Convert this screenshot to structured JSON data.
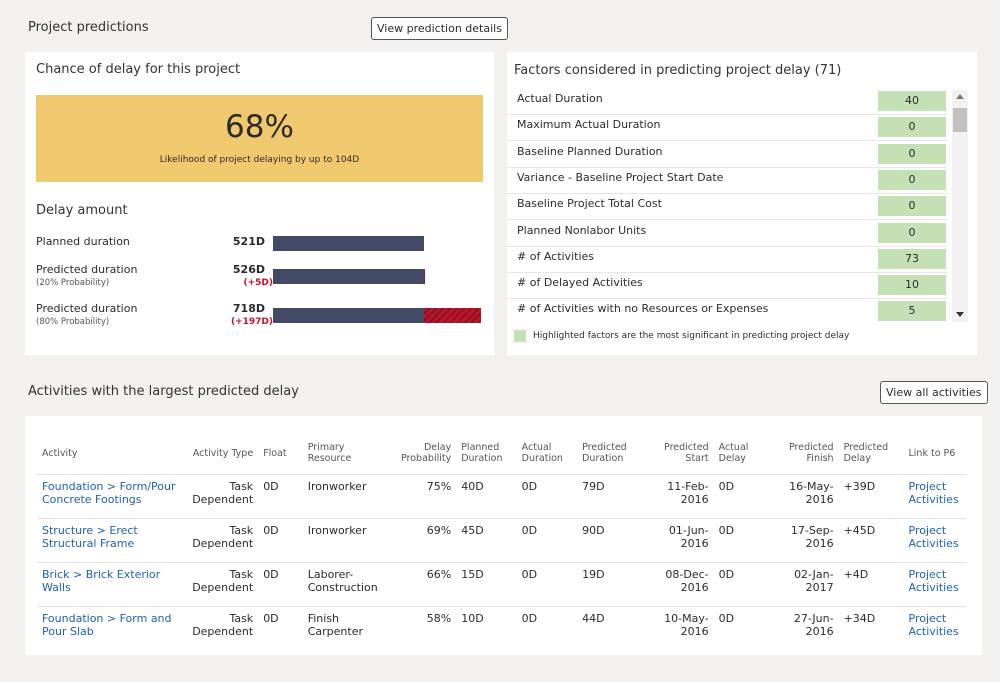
{
  "header": {
    "title": "Project predictions",
    "button": "View prediction details"
  },
  "chance": {
    "title": "Chance of delay for this project",
    "value": "68%",
    "caption": "Likelihood of project delaying by up to 104D"
  },
  "delay_amount": {
    "title": "Delay amount",
    "rows": [
      {
        "label": "Planned duration",
        "days": 521,
        "days_label": "521D"
      },
      {
        "label": "Predicted duration",
        "probability": "(20% Probability)",
        "days": 526,
        "days_label": "526D",
        "extra_days": 5,
        "extra_label": "(+5D)"
      },
      {
        "label": "Predicted duration",
        "probability": "(80% Probability)",
        "days": 718,
        "days_label": "718D",
        "extra_days": 197,
        "extra_label": "(+197D)"
      }
    ]
  },
  "factors": {
    "title": "Factors considered in predicting project delay (71)",
    "legend": "Highlighted factors are the most significant in predicting project delay",
    "items": [
      {
        "name": "Actual Duration",
        "value": 40
      },
      {
        "name": "Maximum Actual Duration",
        "value": 0
      },
      {
        "name": "Baseline Planned Duration",
        "value": 0
      },
      {
        "name": "Variance - Baseline Project Start Date",
        "value": 0
      },
      {
        "name": "Baseline Project Total Cost",
        "value": 0
      },
      {
        "name": "Planned Nonlabor Units",
        "value": 0
      },
      {
        "name": "# of Activities",
        "value": 73
      },
      {
        "name": "# of Delayed Activities",
        "value": 10
      },
      {
        "name": "# of Activities with no Resources or Expenses",
        "value": 5
      }
    ]
  },
  "activities": {
    "title": "Activities with the largest predicted delay",
    "button": "View all activities",
    "columns": [
      "Activity",
      "Activity Type",
      "Float",
      "Primary Resource",
      "Delay Probability",
      "Planned Duration",
      "Actual Duration",
      "Predicted Duration",
      "Predicted Start",
      "Actual Delay",
      "Predicted Finish",
      "Predicted Delay",
      "Link to P6"
    ],
    "rows": [
      [
        "Foundation > Form/Pour Concrete Footings",
        "Task Dependent",
        "0D",
        "Ironworker",
        "75%",
        "40D",
        "0D",
        "79D",
        "11-Feb-2016",
        "0D",
        "16-May-2016",
        "+39D",
        "Project Activities"
      ],
      [
        "Structure > Erect Structural Frame",
        "Task Dependent",
        "0D",
        "Ironworker",
        "69%",
        "45D",
        "0D",
        "90D",
        "01-Jun-2016",
        "0D",
        "17-Sep-2016",
        "+45D",
        "Project Activities"
      ],
      [
        "Brick > Brick Exterior Walls",
        "Task Dependent",
        "0D",
        "Laborer-Construction",
        "66%",
        "15D",
        "0D",
        "19D",
        "08-Dec-2016",
        "0D",
        "02-Jan-2017",
        "+4D",
        "Project Activities"
      ],
      [
        "Foundation > Form and Pour Slab",
        "Task Dependent",
        "0D",
        "Finish Carpenter",
        "58%",
        "10D",
        "0D",
        "44D",
        "10-May-2016",
        "0D",
        "27-Jun-2016",
        "+34D",
        "Project Activities"
      ]
    ]
  }
}
